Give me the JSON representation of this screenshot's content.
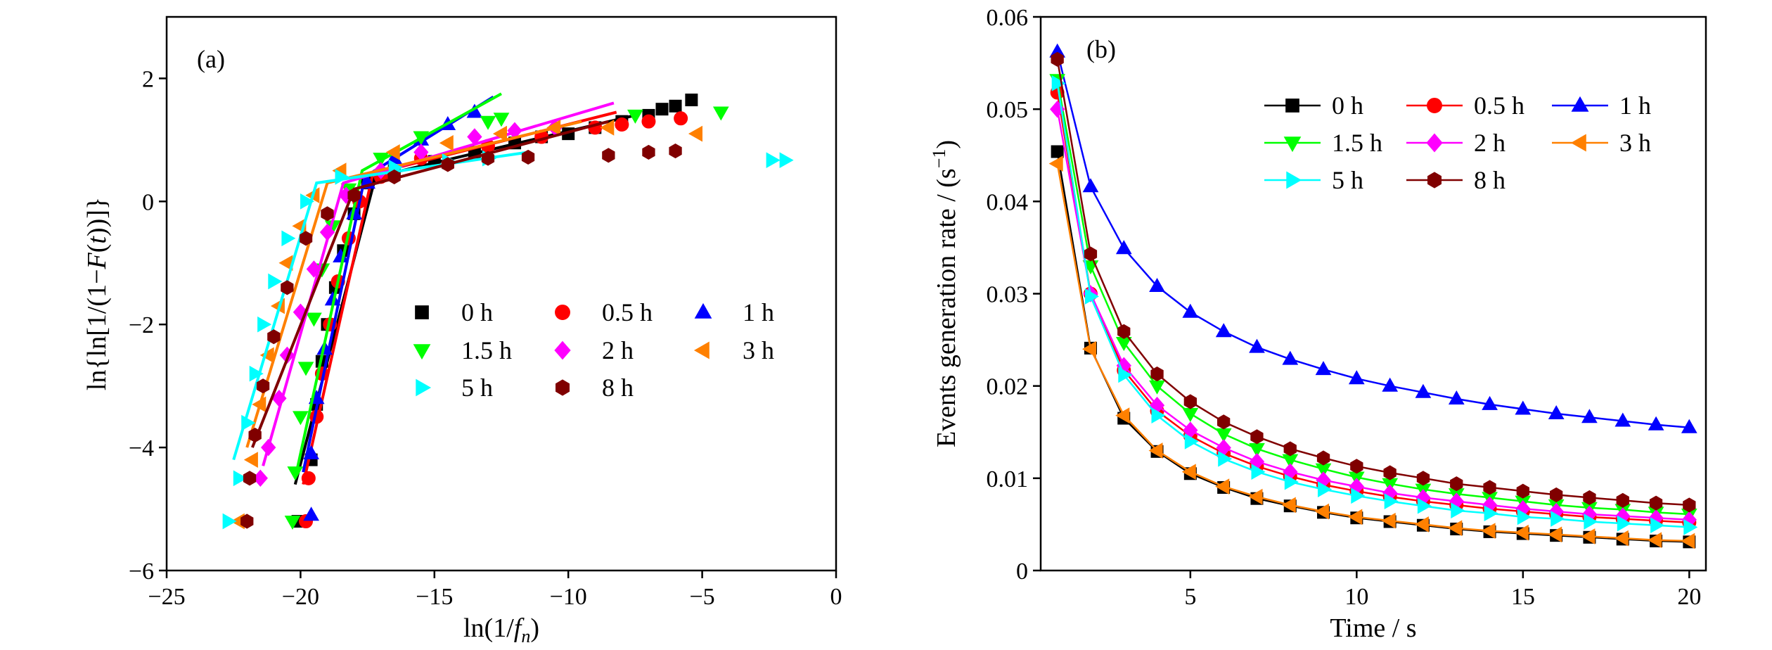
{
  "figure": {
    "panel_a_label": "(a)",
    "panel_b_label": "(b)"
  },
  "chart_data": [
    {
      "type": "scatter",
      "panel": "(a)",
      "title": "",
      "xlabel_parts": [
        "ln(1/",
        "f",
        "n",
        ")"
      ],
      "ylabel_parts": [
        "ln{ln[1/(1−",
        "F",
        "(",
        "t",
        "))]}"
      ],
      "xlim": [
        -25,
        0
      ],
      "ylim": [
        -6,
        3
      ],
      "xticks": [
        -25,
        -20,
        -15,
        -10,
        -5,
        0
      ],
      "xtick_labels": [
        "−25",
        "−20",
        "−15",
        "−10",
        "−5",
        "0"
      ],
      "yticks": [
        -6,
        -4,
        -2,
        0,
        2
      ],
      "ytick_labels": [
        "−6",
        "−4",
        "−2",
        "0",
        "2"
      ],
      "legend_position": "center-right",
      "series": [
        {
          "name": "0 h",
          "color": "#000000",
          "marker": "square",
          "points": [
            [
              -20.1,
              -5.2
            ],
            [
              -19.6,
              -4.2
            ],
            [
              -19.4,
              -3.3
            ],
            [
              -19.2,
              -2.6
            ],
            [
              -19.0,
              -2.0
            ],
            [
              -18.7,
              -1.4
            ],
            [
              -18.4,
              -0.8
            ],
            [
              -18.0,
              -0.2
            ],
            [
              -17.5,
              0.3
            ],
            [
              -16.5,
              0.5
            ],
            [
              -15.0,
              0.65
            ],
            [
              -13.5,
              0.8
            ],
            [
              -12.0,
              0.95
            ],
            [
              -11.0,
              1.05
            ],
            [
              -10.0,
              1.1
            ],
            [
              -9.0,
              1.2
            ],
            [
              -8.0,
              1.3
            ],
            [
              -7.0,
              1.4
            ],
            [
              -6.5,
              1.5
            ],
            [
              -6.0,
              1.55
            ],
            [
              -5.4,
              1.65
            ]
          ],
          "fit": [
            [
              -20.2,
              -4.6
            ],
            [
              -17.2,
              0.4
            ],
            [
              -7.5,
              1.4
            ]
          ]
        },
        {
          "name": "0.5 h",
          "color": "#ff0000",
          "marker": "circle",
          "points": [
            [
              -19.8,
              -5.2
            ],
            [
              -19.7,
              -4.5
            ],
            [
              -19.4,
              -3.5
            ],
            [
              -19.2,
              -2.8
            ],
            [
              -18.9,
              -2.0
            ],
            [
              -18.6,
              -1.3
            ],
            [
              -18.2,
              -0.6
            ],
            [
              -17.8,
              0.0
            ],
            [
              -17.0,
              0.4
            ],
            [
              -15.5,
              0.7
            ],
            [
              -13.0,
              0.9
            ],
            [
              -11.0,
              1.05
            ],
            [
              -9.0,
              1.2
            ],
            [
              -8.0,
              1.25
            ],
            [
              -7.0,
              1.3
            ],
            [
              -5.8,
              1.35
            ]
          ],
          "fit": [
            [
              -19.9,
              -4.6
            ],
            [
              -17.3,
              0.45
            ],
            [
              -8.2,
              1.45
            ]
          ]
        },
        {
          "name": "1 h",
          "color": "#0000ff",
          "marker": "triangle-up",
          "points": [
            [
              -19.6,
              -5.1
            ],
            [
              -19.6,
              -4.1
            ],
            [
              -19.4,
              -3.2
            ],
            [
              -19.1,
              -2.4
            ],
            [
              -18.8,
              -1.6
            ],
            [
              -18.5,
              -0.9
            ],
            [
              -18.0,
              -0.2
            ],
            [
              -17.5,
              0.3
            ],
            [
              -16.5,
              0.7
            ],
            [
              -15.5,
              1.0
            ],
            [
              -14.5,
              1.25
            ],
            [
              -13.5,
              1.45
            ]
          ],
          "fit": [
            [
              -19.9,
              -4.4
            ],
            [
              -17.6,
              0.4
            ],
            [
              -12.8,
              1.7
            ]
          ]
        },
        {
          "name": "1.5 h",
          "color": "#00ff00",
          "marker": "triangle-down",
          "points": [
            [
              -20.3,
              -5.2
            ],
            [
              -20.2,
              -4.4
            ],
            [
              -20.0,
              -3.5
            ],
            [
              -19.8,
              -2.7
            ],
            [
              -19.5,
              -1.9
            ],
            [
              -19.2,
              -1.1
            ],
            [
              -18.8,
              -0.4
            ],
            [
              -18.2,
              0.2
            ],
            [
              -17.0,
              0.7
            ],
            [
              -15.5,
              1.05
            ],
            [
              -13.0,
              1.3
            ],
            [
              -12.5,
              1.35
            ],
            [
              -7.5,
              1.4
            ],
            [
              -4.3,
              1.45
            ]
          ],
          "fit": [
            [
              -20.2,
              -4.5
            ],
            [
              -17.7,
              0.5
            ],
            [
              -12.5,
              1.75
            ]
          ]
        },
        {
          "name": "2 h",
          "color": "#ff00ff",
          "marker": "diamond",
          "points": [
            [
              -21.5,
              -4.5
            ],
            [
              -21.2,
              -4.0
            ],
            [
              -20.8,
              -3.2
            ],
            [
              -20.5,
              -2.5
            ],
            [
              -20.0,
              -1.8
            ],
            [
              -19.5,
              -1.1
            ],
            [
              -19.0,
              -0.5
            ],
            [
              -18.3,
              0.1
            ],
            [
              -17.0,
              0.5
            ],
            [
              -15.5,
              0.8
            ],
            [
              -13.5,
              1.05
            ],
            [
              -12.0,
              1.15
            ],
            [
              -10.5,
              1.2
            ]
          ],
          "fit": [
            [
              -21.4,
              -4.3
            ],
            [
              -18.4,
              0.3
            ],
            [
              -8.3,
              1.6
            ]
          ]
        },
        {
          "name": "3 h",
          "color": "#ff8000",
          "marker": "triangle-left",
          "points": [
            [
              -22.3,
              -5.2
            ],
            [
              -21.8,
              -4.2
            ],
            [
              -21.5,
              -3.3
            ],
            [
              -21.2,
              -2.5
            ],
            [
              -20.8,
              -1.7
            ],
            [
              -20.5,
              -1.0
            ],
            [
              -20.0,
              -0.4
            ],
            [
              -19.5,
              0.1
            ],
            [
              -18.5,
              0.5
            ],
            [
              -16.5,
              0.8
            ],
            [
              -14.5,
              0.95
            ],
            [
              -12.5,
              1.1
            ],
            [
              -10.5,
              1.2
            ],
            [
              -8.5,
              1.2
            ],
            [
              -5.2,
              1.1
            ]
          ],
          "fit": [
            [
              -22.0,
              -4.0
            ],
            [
              -19.0,
              0.3
            ],
            [
              -9.5,
              1.3
            ]
          ]
        },
        {
          "name": "5 h",
          "color": "#00ffff",
          "marker": "triangle-right",
          "points": [
            [
              -22.7,
              -5.2
            ],
            [
              -22.3,
              -4.5
            ],
            [
              -22.0,
              -3.6
            ],
            [
              -21.7,
              -2.8
            ],
            [
              -21.4,
              -2.0
            ],
            [
              -21.0,
              -1.3
            ],
            [
              -20.5,
              -0.6
            ],
            [
              -19.8,
              0.0
            ],
            [
              -18.5,
              0.4
            ],
            [
              -16.5,
              0.55
            ],
            [
              -14.5,
              0.65
            ],
            [
              -13.0,
              0.7
            ],
            [
              -2.4,
              0.67
            ],
            [
              -1.9,
              0.67
            ]
          ],
          "fit": [
            [
              -22.5,
              -4.2
            ],
            [
              -19.4,
              0.3
            ],
            [
              -11.5,
              0.8
            ]
          ]
        },
        {
          "name": "8 h",
          "color": "#800000",
          "marker": "hexagon",
          "points": [
            [
              -22.0,
              -5.2
            ],
            [
              -21.9,
              -4.5
            ],
            [
              -21.7,
              -3.8
            ],
            [
              -21.4,
              -3.0
            ],
            [
              -21.0,
              -2.2
            ],
            [
              -20.5,
              -1.4
            ],
            [
              -19.8,
              -0.6
            ],
            [
              -19.0,
              -0.2
            ],
            [
              -18.0,
              0.1
            ],
            [
              -16.5,
              0.4
            ],
            [
              -14.5,
              0.6
            ],
            [
              -13.0,
              0.7
            ],
            [
              -11.5,
              0.72
            ],
            [
              -8.5,
              0.75
            ],
            [
              -7.0,
              0.8
            ],
            [
              -6.0,
              0.82
            ]
          ],
          "fit": [
            [
              -21.8,
              -4.0
            ],
            [
              -18.0,
              0.2
            ],
            [
              -8.5,
              1.3
            ]
          ]
        }
      ]
    },
    {
      "type": "line",
      "panel": "(b)",
      "title": "",
      "xlabel": "Time / s",
      "ylabel_parts": [
        "Events generation rate / (s",
        "−1",
        ")"
      ],
      "xlim": [
        0.5,
        20.5
      ],
      "ylim": [
        0,
        0.06
      ],
      "xticks": [
        5,
        10,
        15,
        20
      ],
      "xtick_labels": [
        "5",
        "10",
        "15",
        "20"
      ],
      "yticks": [
        0,
        0.01,
        0.02,
        0.03,
        0.04,
        0.05,
        0.06
      ],
      "ytick_labels": [
        "0",
        "0.01",
        "0.02",
        "0.03",
        "0.04",
        "0.05",
        "0.06"
      ],
      "legend_position": "top-right",
      "x": [
        1,
        2,
        3,
        4,
        5,
        6,
        7,
        8,
        9,
        10,
        11,
        12,
        13,
        14,
        15,
        16,
        17,
        18,
        19,
        20
      ],
      "series": [
        {
          "name": "0 h",
          "color": "#000000",
          "marker": "square",
          "values": [
            0.0454,
            0.0241,
            0.0165,
            0.0129,
            0.0105,
            0.009,
            0.0078,
            0.007,
            0.0063,
            0.0057,
            0.0053,
            0.0049,
            0.0045,
            0.0042,
            0.004,
            0.0038,
            0.0036,
            0.0034,
            0.0032,
            0.0031
          ]
        },
        {
          "name": "0.5 h",
          "color": "#ff0000",
          "marker": "circle",
          "values": [
            0.0518,
            0.03,
            0.0217,
            0.0173,
            0.0146,
            0.0127,
            0.0113,
            0.0102,
            0.0093,
            0.0086,
            0.008,
            0.0075,
            0.0071,
            0.0067,
            0.0064,
            0.0061,
            0.0058,
            0.0056,
            0.0054,
            0.0052
          ]
        },
        {
          "name": "1 h",
          "color": "#0000ff",
          "marker": "triangle-up",
          "values": [
            0.0562,
            0.0416,
            0.0349,
            0.0308,
            0.028,
            0.0259,
            0.0242,
            0.0229,
            0.0218,
            0.0208,
            0.02,
            0.0193,
            0.0186,
            0.018,
            0.0175,
            0.017,
            0.0166,
            0.0162,
            0.0158,
            0.0155
          ]
        },
        {
          "name": "1.5 h",
          "color": "#00ff00",
          "marker": "triangle-down",
          "values": [
            0.0532,
            0.033,
            0.0247,
            0.02,
            0.017,
            0.0148,
            0.0132,
            0.012,
            0.011,
            0.0101,
            0.0094,
            0.0088,
            0.0083,
            0.0079,
            0.0075,
            0.0071,
            0.0068,
            0.0066,
            0.0063,
            0.0061
          ]
        },
        {
          "name": "2 h",
          "color": "#ff00ff",
          "marker": "diamond",
          "values": [
            0.05,
            0.03,
            0.0222,
            0.0179,
            0.0152,
            0.0133,
            0.0118,
            0.0107,
            0.0098,
            0.0091,
            0.0084,
            0.0079,
            0.0075,
            0.0071,
            0.0067,
            0.0064,
            0.0061,
            0.0059,
            0.0057,
            0.0055
          ]
        },
        {
          "name": "3 h",
          "color": "#ff8000",
          "marker": "triangle-left",
          "values": [
            0.0441,
            0.024,
            0.0168,
            0.013,
            0.0107,
            0.0091,
            0.008,
            0.0071,
            0.0064,
            0.0058,
            0.0054,
            0.005,
            0.0046,
            0.0043,
            0.0041,
            0.0039,
            0.0037,
            0.0035,
            0.0033,
            0.0032
          ]
        },
        {
          "name": "5 h",
          "color": "#00ffff",
          "marker": "triangle-right",
          "values": [
            0.0528,
            0.0297,
            0.0212,
            0.0168,
            0.014,
            0.0121,
            0.0107,
            0.0096,
            0.0088,
            0.0081,
            0.0075,
            0.007,
            0.0065,
            0.0062,
            0.0058,
            0.0056,
            0.0053,
            0.0051,
            0.0049,
            0.0047
          ]
        },
        {
          "name": "8 h",
          "color": "#800000",
          "marker": "hexagon",
          "values": [
            0.0554,
            0.0343,
            0.0259,
            0.0213,
            0.0183,
            0.0161,
            0.0145,
            0.0132,
            0.0122,
            0.0113,
            0.0106,
            0.01,
            0.0094,
            0.009,
            0.0086,
            0.0082,
            0.0079,
            0.0076,
            0.0073,
            0.0071
          ]
        }
      ]
    }
  ]
}
